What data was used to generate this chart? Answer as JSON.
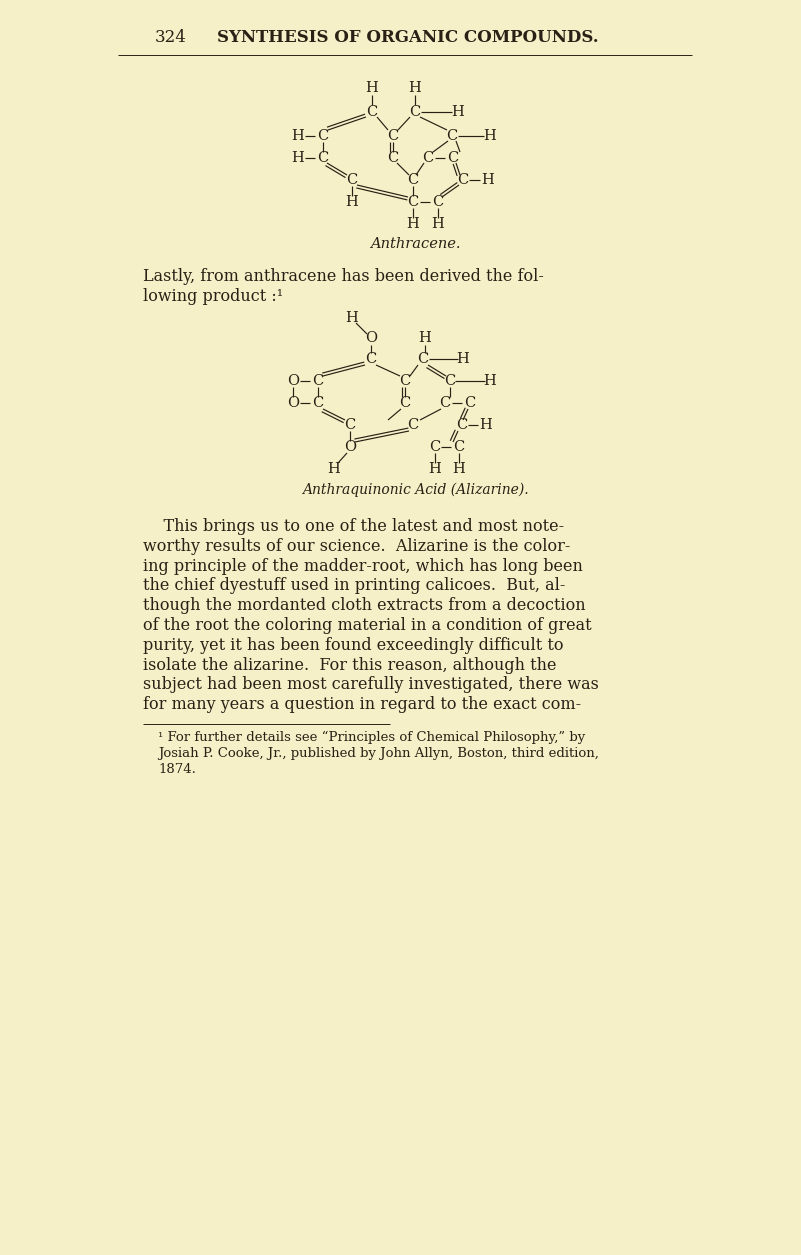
{
  "bg_color": "#f5f0c8",
  "text_color": "#2a2015",
  "header_num": "324",
  "header_title": "SYNTHESIS OF ORGANIC COMPOUNDS.",
  "anthracene_label": "Anthracene.",
  "alizarine_label": "Anthraquinonic Acid (Alizarine).",
  "intro_line1": "Lastly, from anthracene has been derived the fol-",
  "intro_line2": "lowing product :¹",
  "body_lines": [
    "    This brings us to one of the latest and most note-",
    "worthy results of our science.  Alizarine is the color-",
    "ing principle of the madder-root, which has long been",
    "the chief dyestuff used in printing calicoes.  But, al-",
    "though the mordanted cloth extracts from a decoction",
    "of the root the coloring material in a condition of great",
    "purity, yet it has been found exceedingly difficult to",
    "isolate the alizarine.  For this reason, although the",
    "subject had been most carefully investigated, there was",
    "for many years a question in regard to the exact com-"
  ],
  "footnote_lines": [
    "¹ For further details see “Principles of Chemical Philosophy,” by",
    "Josiah P. Cooke, Jr., published by John Allyn, Boston, third edition,",
    "1874."
  ]
}
